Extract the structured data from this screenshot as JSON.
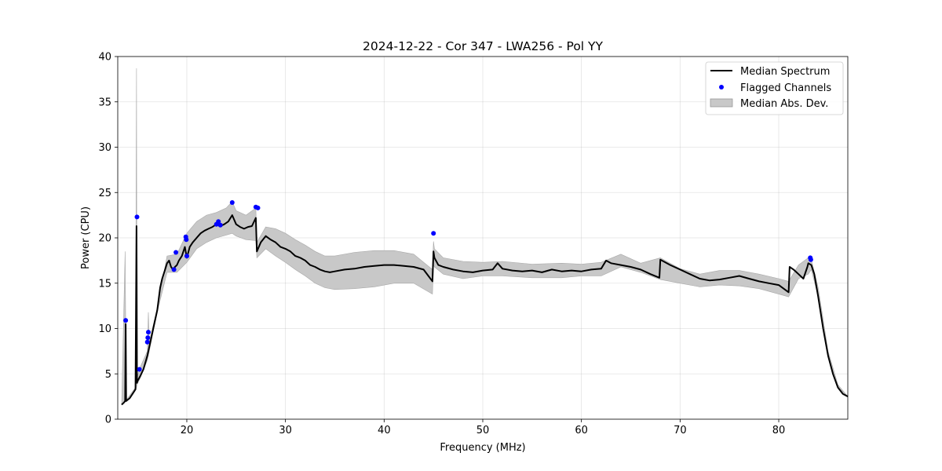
{
  "chart_data": {
    "type": "line",
    "title": "2024-12-22 - Cor 347 - LWA256 - Pol YY",
    "xlabel": "Frequency (MHz)",
    "ylabel": "Power (CPU)",
    "xlim": [
      13,
      87
    ],
    "ylim": [
      0,
      40
    ],
    "xticks": [
      20,
      30,
      40,
      50,
      60,
      70,
      80
    ],
    "yticks": [
      0,
      5,
      10,
      15,
      20,
      25,
      30,
      35,
      40
    ],
    "grid": true,
    "legend_position": "top-right",
    "colors": {
      "median": "#000000",
      "flagged": "#0000ff",
      "mad": "#c8c8c8"
    },
    "series": [
      {
        "name": "Median Spectrum",
        "kind": "line",
        "x": [
          13.4,
          13.6,
          13.75,
          13.8,
          13.85,
          14.2,
          14.5,
          14.8,
          14.9,
          14.95,
          15.0,
          15.1,
          15.3,
          15.6,
          16.0,
          16.3,
          16.6,
          17.0,
          17.3,
          17.5,
          17.8,
          18.0,
          18.2,
          18.4,
          18.6,
          18.8,
          19.0,
          19.2,
          19.5,
          19.8,
          20.0,
          20.3,
          20.6,
          21.0,
          21.4,
          21.8,
          22.2,
          22.6,
          23.0,
          23.4,
          23.8,
          24.2,
          24.6,
          25.0,
          25.4,
          25.8,
          26.2,
          26.6,
          27.0,
          27.1,
          27.5,
          28.0,
          28.5,
          29.0,
          29.5,
          30.0,
          30.5,
          31.0,
          31.5,
          32.0,
          32.5,
          33.0,
          33.5,
          34.0,
          34.5,
          35.0,
          36.0,
          37.0,
          38.0,
          39.0,
          40.0,
          41.0,
          42.0,
          43.0,
          44.0,
          44.9,
          45.0,
          45.1,
          45.5,
          46.0,
          47.0,
          48.0,
          49.0,
          50.0,
          51.0,
          51.5,
          52.0,
          53.0,
          54.0,
          55.0,
          56.0,
          57.0,
          58.0,
          59.0,
          60.0,
          61.0,
          62.0,
          62.5,
          63.0,
          64.0,
          65.0,
          66.0,
          67.0,
          67.9,
          68.0,
          69.0,
          70.0,
          71.0,
          72.0,
          73.0,
          74.0,
          75.0,
          76.0,
          77.0,
          78.0,
          79.0,
          80.0,
          81.0,
          81.1,
          81.5,
          82.0,
          82.5,
          82.9,
          83.0,
          83.3,
          83.6,
          84.0,
          84.5,
          85.0,
          85.5,
          86.0,
          86.5,
          87.0
        ],
        "y": [
          1.6,
          1.8,
          2.0,
          10.5,
          2.0,
          2.3,
          2.8,
          3.3,
          21.3,
          4.0,
          4.2,
          4.4,
          4.8,
          5.5,
          7.0,
          8.5,
          10.0,
          12.0,
          14.5,
          15.5,
          16.5,
          17.2,
          17.5,
          16.8,
          16.5,
          16.8,
          17.0,
          17.5,
          18.0,
          19.0,
          17.8,
          19.0,
          19.5,
          20.0,
          20.5,
          20.8,
          21.0,
          21.2,
          21.5,
          21.3,
          21.5,
          21.8,
          22.5,
          21.5,
          21.2,
          21.0,
          21.2,
          21.3,
          22.2,
          18.5,
          19.5,
          20.2,
          19.8,
          19.5,
          19.0,
          18.8,
          18.5,
          18.0,
          17.8,
          17.5,
          17.0,
          16.8,
          16.5,
          16.3,
          16.2,
          16.3,
          16.5,
          16.6,
          16.8,
          16.9,
          17.0,
          17.0,
          16.9,
          16.8,
          16.5,
          15.2,
          18.5,
          17.8,
          17.0,
          16.8,
          16.5,
          16.3,
          16.2,
          16.4,
          16.5,
          17.2,
          16.6,
          16.4,
          16.3,
          16.4,
          16.2,
          16.5,
          16.3,
          16.4,
          16.3,
          16.5,
          16.6,
          17.5,
          17.2,
          17.0,
          16.8,
          16.5,
          16.0,
          15.6,
          17.6,
          17.0,
          16.5,
          16.0,
          15.5,
          15.3,
          15.4,
          15.6,
          15.8,
          15.5,
          15.2,
          15.0,
          14.8,
          14.0,
          16.8,
          16.5,
          16.0,
          15.5,
          16.8,
          17.2,
          17.0,
          16.0,
          13.5,
          10.0,
          7.0,
          5.0,
          3.5,
          2.8,
          2.5
        ],
        "line_width": 2
      },
      {
        "name": "Flagged Channels",
        "kind": "scatter",
        "x": [
          13.8,
          14.95,
          15.2,
          16.0,
          16.05,
          16.1,
          18.7,
          18.9,
          19.9,
          19.95,
          20.0,
          23.0,
          23.2,
          23.4,
          24.6,
          27.0,
          27.2,
          45.0,
          83.2,
          83.25
        ],
        "y": [
          10.9,
          22.3,
          5.5,
          8.5,
          9.0,
          9.6,
          16.5,
          18.4,
          20.1,
          19.8,
          18.0,
          21.5,
          21.8,
          21.4,
          23.9,
          23.4,
          23.3,
          20.5,
          17.8,
          17.6
        ]
      },
      {
        "name": "Median Abs. Dev.",
        "kind": "band",
        "x": [
          13.4,
          13.75,
          13.8,
          13.85,
          14.8,
          14.9,
          14.95,
          15.3,
          16.0,
          16.1,
          16.2,
          17.0,
          18.0,
          19.0,
          20.0,
          21.0,
          22.0,
          23.0,
          24.0,
          24.6,
          25.0,
          26.0,
          27.0,
          27.1,
          28.0,
          29.0,
          30.0,
          31.0,
          32.0,
          33.0,
          34.0,
          35.0,
          37.0,
          39.0,
          41.0,
          43.0,
          44.9,
          45.0,
          45.1,
          46.0,
          48.0,
          50.0,
          52.0,
          55.0,
          58.0,
          60.0,
          62.0,
          64.0,
          66.0,
          68.0,
          70.0,
          72.0,
          74.0,
          76.0,
          78.0,
          80.0,
          81.0,
          82.0,
          83.0,
          83.3,
          84.0,
          85.0,
          86.0,
          87.0
        ],
        "lower": [
          1.6,
          1.9,
          2.0,
          1.9,
          3.2,
          3.5,
          3.8,
          4.6,
          6.5,
          7.0,
          7.5,
          11.8,
          16.2,
          16.2,
          17.3,
          18.8,
          19.5,
          20.0,
          20.3,
          20.5,
          20.2,
          19.8,
          19.7,
          17.8,
          18.8,
          18.0,
          17.3,
          16.5,
          15.8,
          15.0,
          14.5,
          14.3,
          14.4,
          14.6,
          15.0,
          15.0,
          13.8,
          17.0,
          16.8,
          16.0,
          15.5,
          15.8,
          15.8,
          15.6,
          15.6,
          15.8,
          15.8,
          16.8,
          16.2,
          15.4,
          15.0,
          14.6,
          14.8,
          14.7,
          14.4,
          13.8,
          13.5,
          15.5,
          16.0,
          16.5,
          13.5,
          7.0,
          3.5,
          2.5
        ],
        "upper": [
          1.6,
          18.5,
          10.8,
          2.1,
          3.5,
          38.7,
          4.6,
          5.8,
          7.5,
          11.8,
          8.5,
          12.3,
          18.0,
          18.2,
          20.5,
          21.8,
          22.5,
          22.8,
          23.3,
          24.0,
          23.0,
          22.5,
          23.3,
          19.5,
          21.2,
          21.0,
          20.5,
          19.8,
          19.2,
          18.5,
          18.0,
          18.0,
          18.4,
          18.6,
          18.6,
          18.2,
          16.5,
          19.6,
          18.8,
          17.8,
          17.4,
          17.3,
          17.4,
          17.1,
          17.2,
          17.1,
          17.3,
          18.2,
          17.2,
          17.8,
          16.6,
          16.0,
          16.4,
          16.4,
          16.0,
          15.5,
          15.2,
          17.0,
          17.8,
          17.6,
          14.5,
          7.5,
          3.8,
          2.5
        ]
      }
    ]
  }
}
